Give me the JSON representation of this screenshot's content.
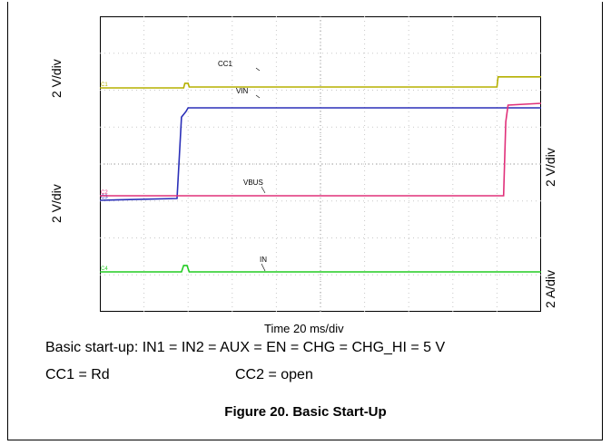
{
  "chart_data": {
    "type": "line",
    "title": "Figure 20. Basic Start-Up",
    "xlabel": "Time 20 ms/div",
    "x_unit": "ms",
    "xlim": [
      0,
      200
    ],
    "grid": true,
    "axis_scales": {
      "left_top": "2 V/div",
      "left_bottom": "2 V/div",
      "right_top": "2 V/div",
      "right_bottom": "2 A/div"
    },
    "channel_markers": [
      "C1",
      "C2",
      "C3",
      "C4"
    ],
    "series": [
      {
        "name": "CC1",
        "marker": "C1",
        "color": "#b5b000",
        "x": [
          0,
          38,
          38.5,
          40,
          40.5,
          180,
          180.5,
          200
        ],
        "y": [
          0,
          0,
          0.25,
          0.25,
          0.05,
          0.05,
          0.6,
          0.6
        ]
      },
      {
        "name": "VIN",
        "marker": "C3",
        "color": "#2a2fb8",
        "x": [
          0,
          35,
          37,
          39,
          40,
          200
        ],
        "y": [
          0,
          0.1,
          4.5,
          4.8,
          5,
          5
        ]
      },
      {
        "name": "VBUS",
        "marker": "C2",
        "color": "#e0307a",
        "x": [
          0,
          183,
          184,
          185,
          200
        ],
        "y": [
          0,
          0,
          4,
          4.9,
          5
        ]
      },
      {
        "name": "IN",
        "marker": "C4",
        "color": "#22cc22",
        "x": [
          0,
          37,
          38,
          39.5,
          40.5,
          200
        ],
        "y": [
          0,
          0,
          0.35,
          0.35,
          0,
          0
        ]
      }
    ]
  },
  "labels": {
    "left_top": "2 V/div",
    "left_bottom": "2 V/div",
    "right_top": "2 V/div",
    "right_bottom": "2 A/div",
    "xlabel": "Time 20 ms/div",
    "caption_line1": "Basic start-up: IN1 = IN2 = AUX = EN = CHG = CHG_HI = 5 V",
    "caption_cc1": "CC1 = Rd",
    "caption_cc2": "CC2 = open",
    "figure_title": "Figure 20. Basic Start-Up"
  }
}
